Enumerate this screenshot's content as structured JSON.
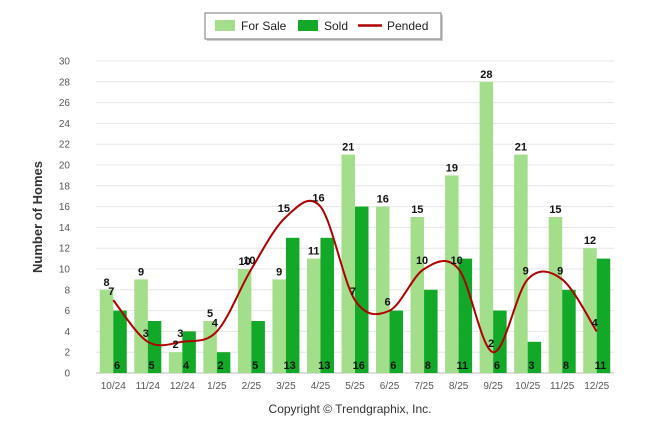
{
  "chart_data": {
    "type": "bar",
    "title": "",
    "xlabel": "",
    "ylabel": "Number of Homes",
    "ylim": [
      0,
      30
    ],
    "ytick_step": 2,
    "grid": true,
    "legend_position": "top-center",
    "categories": [
      "10/24",
      "11/24",
      "12/24",
      "1/25",
      "2/25",
      "3/25",
      "4/25",
      "5/25",
      "6/25",
      "7/25",
      "8/25",
      "9/25",
      "10/25",
      "11/25",
      "12/25"
    ],
    "series": [
      {
        "name": "For Sale",
        "kind": "bar",
        "color": "#a3de8b",
        "values": [
          8,
          9,
          2,
          5,
          10,
          9,
          11,
          21,
          16,
          15,
          19,
          28,
          21,
          15,
          12
        ]
      },
      {
        "name": "Sold",
        "kind": "bar",
        "color": "#12a828",
        "values": [
          6,
          5,
          4,
          2,
          5,
          13,
          13,
          16,
          6,
          8,
          11,
          6,
          3,
          8,
          11
        ]
      },
      {
        "name": "Pended",
        "kind": "line",
        "color": "#b00000",
        "values": [
          7,
          3,
          3,
          4,
          10,
          15,
          16,
          7,
          6,
          10,
          10,
          2,
          9,
          9,
          4
        ]
      }
    ],
    "credit": "Copyright © Trendgraphix, Inc."
  }
}
